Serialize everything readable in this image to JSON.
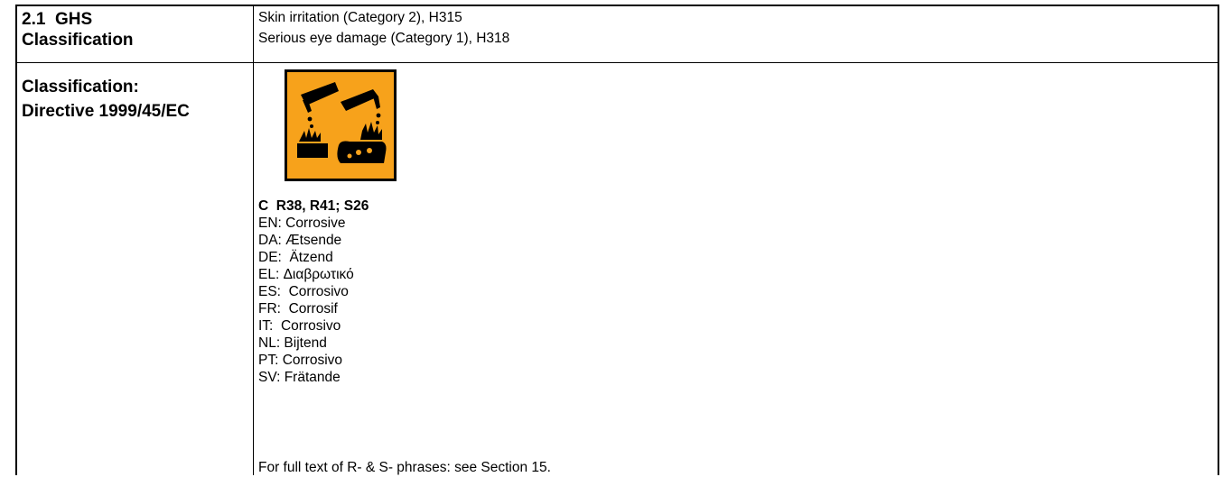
{
  "ghs": {
    "label_line1": "2.1  GHS",
    "label_line2": "Classification",
    "lines": [
      "Skin irritation (Category 2), H315",
      "Serious eye damage (Category 1), H318"
    ]
  },
  "directive": {
    "label_line1": "Classification:",
    "label_line2": "Directive 1999/45/EC",
    "pictogram": {
      "icon": "corrosive-pictogram-icon",
      "background": "#f7a21b",
      "border": "#000000"
    },
    "code": "C  R38, R41; S26",
    "translations": [
      "EN: Corrosive",
      "DA: Ætsende",
      "DE:  Ätzend",
      "EL: Διαβρωτικό",
      "ES:  Corrosivo",
      "FR:  Corrosif",
      "IT:  Corrosivo",
      "NL: Bijtend",
      "PT: Corrosivo",
      "SV: Frätande"
    ],
    "footnote": "For full text of R- & S- phrases: see Section 15."
  }
}
